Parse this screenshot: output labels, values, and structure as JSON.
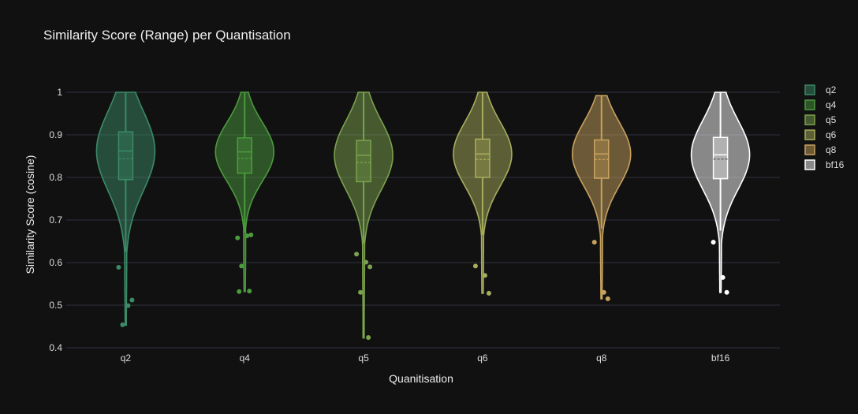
{
  "chart_data": {
    "type": "violin",
    "title": "Similarity Score (Range) per Quantisation",
    "xlabel": "Quanitisation",
    "ylabel": "Similarity Score (cosine)",
    "ylim": [
      0.4,
      1.0
    ],
    "yticks": [
      0.4,
      0.5,
      0.6,
      0.7,
      0.8,
      0.9,
      1
    ],
    "ytick_labels": [
      "0.4",
      "0.5",
      "0.6",
      "0.7",
      "0.8",
      "0.9",
      "1"
    ],
    "grid": true,
    "legend_position": "right",
    "categories": [
      "q2",
      "q4",
      "q5",
      "q6",
      "q8",
      "bf16"
    ],
    "series": [
      {
        "name": "q2",
        "color": "#3c8a68",
        "min": 0.453,
        "max": 1.0,
        "q1": 0.795,
        "median": 0.862,
        "mean": 0.844,
        "q3": 0.907,
        "upper_fence": 1.0,
        "lower_fence": 0.625,
        "outliers": [
          0.589,
          0.499,
          0.512,
          0.454
        ]
      },
      {
        "name": "q4",
        "color": "#4c9a3e",
        "min": 0.532,
        "max": 1.0,
        "q1": 0.81,
        "median": 0.86,
        "mean": 0.845,
        "q3": 0.893,
        "upper_fence": 1.0,
        "lower_fence": 0.67,
        "outliers": [
          0.658,
          0.663,
          0.665,
          0.592,
          0.533,
          0.532
        ]
      },
      {
        "name": "q5",
        "color": "#7ba24e",
        "min": 0.423,
        "max": 1.0,
        "q1": 0.79,
        "median": 0.852,
        "mean": 0.835,
        "q3": 0.887,
        "upper_fence": 1.0,
        "lower_fence": 0.645,
        "outliers": [
          0.62,
          0.601,
          0.59,
          0.53,
          0.424
        ]
      },
      {
        "name": "q6",
        "color": "#a8ad5c",
        "min": 0.528,
        "max": 1.0,
        "q1": 0.8,
        "median": 0.855,
        "mean": 0.842,
        "q3": 0.89,
        "upper_fence": 1.0,
        "lower_fence": 0.665,
        "outliers": [
          0.592,
          0.57,
          0.528
        ]
      },
      {
        "name": "q8",
        "color": "#c8a25e",
        "min": 0.515,
        "max": 0.992,
        "q1": 0.798,
        "median": 0.855,
        "mean": 0.842,
        "q3": 0.888,
        "upper_fence": 0.992,
        "lower_fence": 0.68,
        "outliers": [
          0.648,
          0.53,
          0.515
        ]
      },
      {
        "name": "bf16",
        "color": "#ffffff",
        "min": 0.53,
        "max": 1.0,
        "q1": 0.797,
        "median": 0.853,
        "mean": 0.843,
        "q3": 0.894,
        "upper_fence": 1.0,
        "lower_fence": 0.675,
        "outliers": [
          0.648,
          0.565,
          0.53
        ]
      }
    ]
  }
}
